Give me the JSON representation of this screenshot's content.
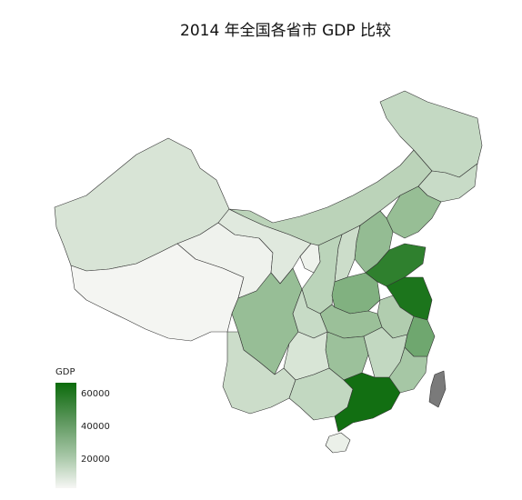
{
  "title": "2014 年全国各省市 GDP 比较",
  "legend": {
    "title": "GDP",
    "ticks": [
      "60000",
      "40000",
      "20000"
    ]
  },
  "colors": {
    "low": "#f7f7f5",
    "high": "#0b6b0b",
    "border": "#333333",
    "taiwan": "#7a7a7a"
  },
  "regions": [
    {
      "name": "Xinjiang",
      "gdp": 9300
    },
    {
      "name": "Tibet",
      "gdp": 900
    },
    {
      "name": "Qinghai",
      "gdp": 2300
    },
    {
      "name": "Gansu",
      "gdp": 6800
    },
    {
      "name": "Inner Mongolia",
      "gdp": 17800
    },
    {
      "name": "Heilongjiang",
      "gdp": 15000
    },
    {
      "name": "Jilin",
      "gdp": 13800
    },
    {
      "name": "Liaoning",
      "gdp": 28600
    },
    {
      "name": "Hebei",
      "gdp": 29400
    },
    {
      "name": "Shanxi",
      "gdp": 12800
    },
    {
      "name": "Shaanxi",
      "gdp": 17700
    },
    {
      "name": "Ningxia",
      "gdp": 2700
    },
    {
      "name": "Henan",
      "gdp": 34900
    },
    {
      "name": "Shandong",
      "gdp": 59400
    },
    {
      "name": "Jiangsu",
      "gdp": 65000
    },
    {
      "name": "Anhui",
      "gdp": 20800
    },
    {
      "name": "Hubei",
      "gdp": 27400
    },
    {
      "name": "Sichuan",
      "gdp": 28500
    },
    {
      "name": "Chongqing",
      "gdp": 14200
    },
    {
      "name": "Hunan",
      "gdp": 27000
    },
    {
      "name": "Guizhou",
      "gdp": 9200
    },
    {
      "name": "Yunnan",
      "gdp": 12800
    },
    {
      "name": "Guangxi",
      "gdp": 15700
    },
    {
      "name": "Guangdong",
      "gdp": 67800
    },
    {
      "name": "Fujian",
      "gdp": 24000
    },
    {
      "name": "Jiangxi",
      "gdp": 15700
    },
    {
      "name": "Zhejiang",
      "gdp": 40200
    },
    {
      "name": "Hainan",
      "gdp": 3500
    },
    {
      "name": "Taiwan",
      "gdp": null
    }
  ]
}
